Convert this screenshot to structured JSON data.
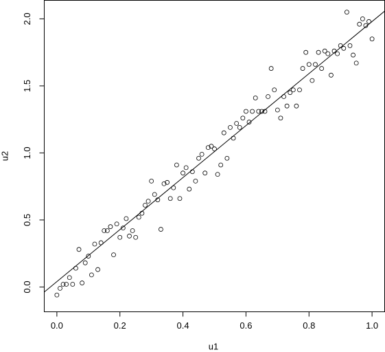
{
  "chart_data": {
    "type": "scatter",
    "x_label": "u1",
    "y_label": "u2",
    "x": [
      0.0,
      0.01,
      0.02,
      0.03,
      0.04,
      0.05,
      0.06,
      0.07,
      0.08,
      0.09,
      0.1,
      0.11,
      0.12,
      0.13,
      0.14,
      0.15,
      0.16,
      0.17,
      0.18,
      0.19,
      0.2,
      0.21,
      0.22,
      0.23,
      0.24,
      0.25,
      0.26,
      0.27,
      0.28,
      0.29,
      0.3,
      0.31,
      0.32,
      0.33,
      0.34,
      0.35,
      0.36,
      0.37,
      0.38,
      0.39,
      0.4,
      0.41,
      0.42,
      0.43,
      0.44,
      0.45,
      0.46,
      0.47,
      0.48,
      0.49,
      0.5,
      0.51,
      0.52,
      0.53,
      0.54,
      0.55,
      0.56,
      0.57,
      0.58,
      0.59,
      0.6,
      0.61,
      0.62,
      0.63,
      0.64,
      0.65,
      0.66,
      0.67,
      0.68,
      0.69,
      0.7,
      0.71,
      0.72,
      0.73,
      0.74,
      0.75,
      0.76,
      0.77,
      0.78,
      0.79,
      0.8,
      0.81,
      0.82,
      0.83,
      0.84,
      0.85,
      0.86,
      0.87,
      0.88,
      0.89,
      0.9,
      0.91,
      0.92,
      0.93,
      0.94,
      0.95,
      0.96,
      0.97,
      0.98,
      0.99,
      1.0
    ],
    "y": [
      -0.06,
      -0.01,
      0.02,
      0.02,
      0.07,
      0.02,
      0.14,
      0.28,
      0.03,
      0.18,
      0.23,
      0.09,
      0.32,
      0.13,
      0.33,
      0.42,
      0.42,
      0.45,
      0.24,
      0.47,
      0.37,
      0.44,
      0.51,
      0.38,
      0.42,
      0.37,
      0.52,
      0.55,
      0.61,
      0.64,
      0.79,
      0.69,
      0.65,
      0.43,
      0.77,
      0.78,
      0.66,
      0.74,
      0.91,
      0.66,
      0.85,
      0.89,
      0.73,
      0.86,
      0.79,
      0.96,
      0.99,
      0.85,
      1.04,
      1.05,
      1.03,
      0.84,
      0.91,
      1.15,
      0.96,
      1.19,
      1.11,
      1.22,
      1.19,
      1.26,
      1.31,
      1.23,
      1.31,
      1.41,
      1.31,
      1.31,
      1.31,
      1.42,
      1.63,
      1.47,
      1.32,
      1.26,
      1.42,
      1.35,
      1.45,
      1.47,
      1.35,
      1.47,
      1.63,
      1.75,
      1.66,
      1.54,
      1.66,
      1.75,
      1.63,
      1.76,
      1.74,
      1.58,
      1.76,
      1.74,
      1.8,
      1.78,
      2.05,
      1.8,
      1.73,
      1.67,
      1.96,
      2.0,
      1.95,
      1.98,
      1.85
    ],
    "fit_line": {
      "intercept": 0.04,
      "slope": 1.94
    },
    "xlim": [
      -0.04,
      1.04
    ],
    "ylim": [
      -0.185,
      2.138
    ],
    "xticks": [
      {
        "value": 0,
        "label": "0.0"
      },
      {
        "value": 0.2,
        "label": "0.2"
      },
      {
        "value": 0.4,
        "label": "0.4"
      },
      {
        "value": 0.6,
        "label": "0.6"
      },
      {
        "value": 0.8,
        "label": "0.8"
      },
      {
        "value": 1,
        "label": "1.0"
      }
    ],
    "yticks": [
      {
        "value": 0,
        "label": "0.0"
      },
      {
        "value": 0.5,
        "label": "0.5"
      },
      {
        "value": 1,
        "label": "1.0"
      },
      {
        "value": 1.5,
        "label": "1.5"
      },
      {
        "value": 2,
        "label": "2.0"
      }
    ]
  }
}
